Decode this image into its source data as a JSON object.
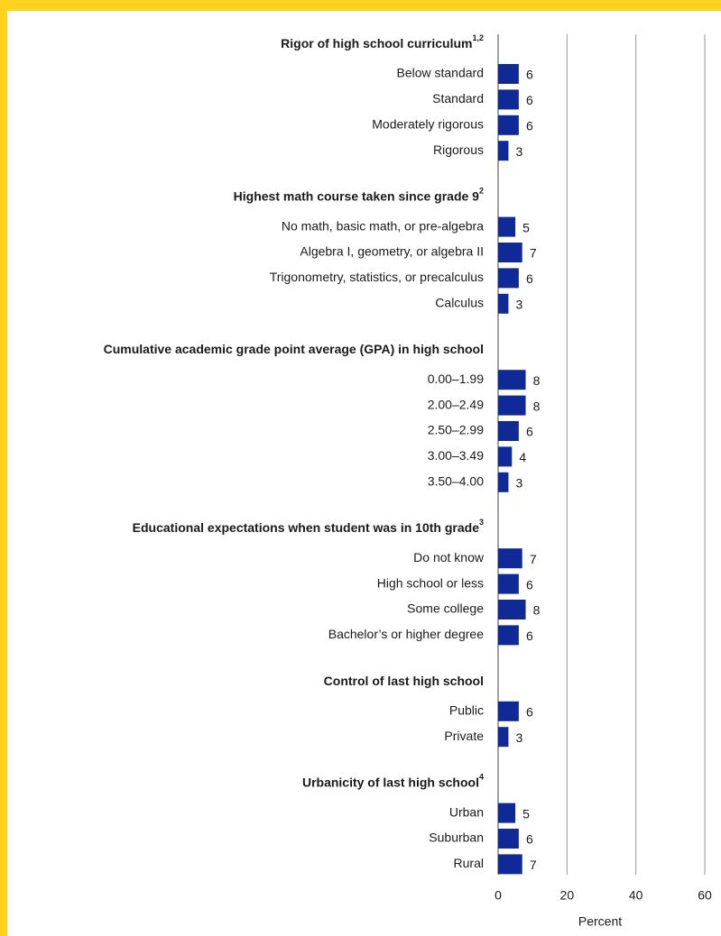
{
  "chart_data": {
    "type": "bar",
    "color": "#0f2a96",
    "grid": true,
    "xlim": [
      0,
      60
    ],
    "xticks": [
      0,
      20,
      40,
      60
    ],
    "xlabel": "Percent",
    "groups": [
      {
        "title": "Rigor of high school curriculum",
        "note": "1,2",
        "categories": [
          "Below standard",
          "Standard",
          "Moderately rigorous",
          "Rigorous"
        ],
        "values": [
          6,
          6,
          6,
          3
        ]
      },
      {
        "title": "Highest math course taken since grade 9",
        "note": "2",
        "categories": [
          "No math, basic math, or pre-algebra",
          "Algebra I, geometry, or algebra II",
          "Trigonometry, statistics, or precalculus",
          "Calculus"
        ],
        "values": [
          5,
          7,
          6,
          3
        ]
      },
      {
        "title": "Cumulative academic grade point average (GPA) in high school",
        "categories": [
          "0.00–1.99",
          "2.00–2.49",
          "2.50–2.99",
          "3.00–3.49",
          "3.50–4.00"
        ],
        "values": [
          8,
          8,
          6,
          4,
          3
        ]
      },
      {
        "title": "Educational expectations when student was in 10th grade",
        "note": "3",
        "categories": [
          "Do not know",
          "High school or less",
          "Some college",
          "Bachelor’s or higher degree"
        ],
        "values": [
          7,
          6,
          8,
          6
        ]
      },
      {
        "title": "Control of last high school",
        "categories": [
          "Public",
          "Private"
        ],
        "values": [
          6,
          3
        ]
      },
      {
        "title": "Urbanicity of last high school",
        "note": "4",
        "categories": [
          "Urban",
          "Suburban",
          "Rural"
        ],
        "values": [
          5,
          6,
          7
        ]
      }
    ]
  }
}
